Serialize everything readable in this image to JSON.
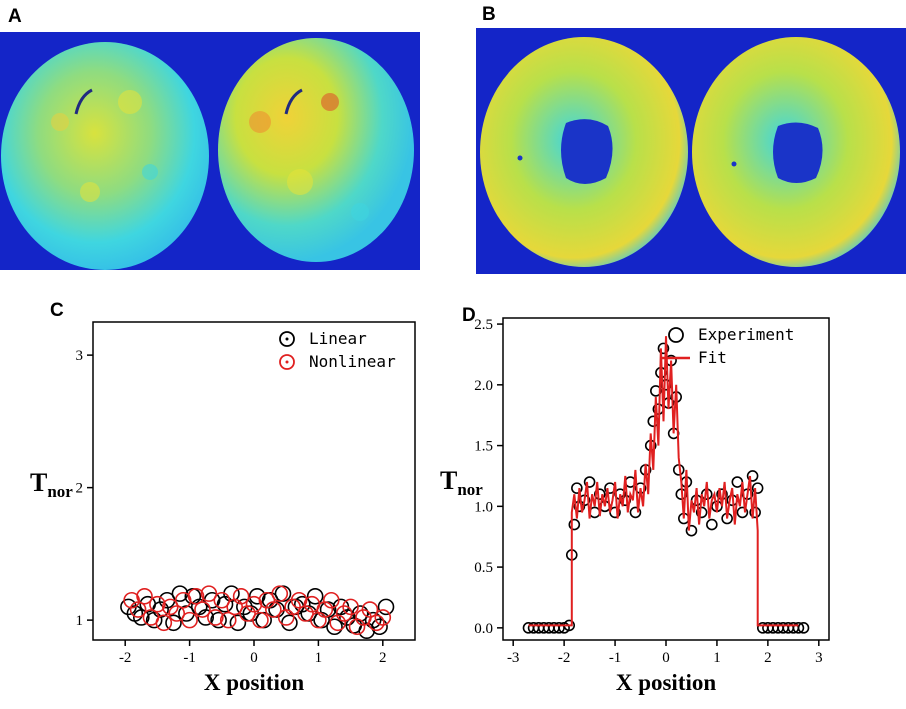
{
  "panels": {
    "a": {
      "label": "A"
    },
    "b": {
      "label": "B"
    },
    "c": {
      "label": "C"
    },
    "d": {
      "label": "D"
    }
  },
  "colors": {
    "background_blue": "#1425c8",
    "cyan": "#3fd6e0",
    "yellow": "#e6e33a",
    "red": "#e02020",
    "black": "#000000"
  },
  "chart_data": [
    {
      "panel": "C",
      "type": "scatter",
      "xlabel": "X position",
      "ylabel_main": "T",
      "ylabel_sub": "nor",
      "xlim": [
        -2.5,
        2.5
      ],
      "ylim": [
        0.85,
        3.25
      ],
      "xticks": [
        -2,
        -1,
        0,
        1,
        2
      ],
      "xtick_labels": [
        "-2",
        "-1",
        "0",
        "1",
        "2"
      ],
      "yticks": [
        1,
        2,
        3
      ],
      "ytick_labels": [
        "1",
        "2",
        "3"
      ],
      "legend": {
        "placement": "top-right",
        "entries": [
          "Linear",
          "Nonlinear"
        ]
      },
      "series": [
        {
          "name": "Linear",
          "color": "#000000",
          "x": [
            -1.95,
            -1.85,
            -1.75,
            -1.65,
            -1.55,
            -1.45,
            -1.35,
            -1.25,
            -1.15,
            -1.05,
            -0.95,
            -0.85,
            -0.75,
            -0.65,
            -0.55,
            -0.45,
            -0.35,
            -0.25,
            -0.15,
            -0.05,
            0.05,
            0.15,
            0.25,
            0.35,
            0.45,
            0.55,
            0.65,
            0.75,
            0.85,
            0.95,
            1.05,
            1.15,
            1.25,
            1.35,
            1.45,
            1.55,
            1.65,
            1.75,
            1.85,
            1.95,
            2.05
          ],
          "y": [
            1.1,
            1.05,
            1.02,
            1.12,
            1.0,
            1.08,
            1.15,
            0.98,
            1.2,
            1.05,
            1.18,
            1.1,
            1.02,
            1.15,
            1.0,
            1.12,
            1.2,
            0.98,
            1.1,
            1.05,
            1.18,
            1.0,
            1.15,
            1.08,
            1.2,
            0.98,
            1.1,
            1.12,
            1.05,
            1.18,
            1.0,
            1.08,
            0.95,
            1.1,
            1.02,
            0.96,
            1.05,
            0.92,
            1.0,
            0.95,
            1.1
          ]
        },
        {
          "name": "Nonlinear",
          "color": "#e02020",
          "x": [
            -1.9,
            -1.8,
            -1.7,
            -1.6,
            -1.5,
            -1.4,
            -1.3,
            -1.2,
            -1.1,
            -1.0,
            -0.9,
            -0.8,
            -0.7,
            -0.6,
            -0.5,
            -0.4,
            -0.3,
            -0.2,
            -0.1,
            0.0,
            0.1,
            0.2,
            0.3,
            0.4,
            0.5,
            0.6,
            0.7,
            0.8,
            0.9,
            1.0,
            1.1,
            1.2,
            1.3,
            1.4,
            1.5,
            1.6,
            1.7,
            1.8,
            1.9,
            2.0
          ],
          "y": [
            1.15,
            1.08,
            1.18,
            1.02,
            1.12,
            0.98,
            1.1,
            1.05,
            1.15,
            1.0,
            1.18,
            1.08,
            1.2,
            1.02,
            1.15,
            1.0,
            1.1,
            1.18,
            1.05,
            1.12,
            1.0,
            1.15,
            1.08,
            1.2,
            1.02,
            1.1,
            1.15,
            1.05,
            1.12,
            1.0,
            1.08,
            1.15,
            0.98,
            1.05,
            1.1,
            0.95,
            1.02,
            1.08,
            0.98,
            1.02
          ]
        }
      ]
    },
    {
      "panel": "D",
      "type": "scatter",
      "xlabel": "X position",
      "ylabel_main": "T",
      "ylabel_sub": "nor",
      "xlim": [
        -3.2,
        3.2
      ],
      "ylim": [
        -0.1,
        2.55
      ],
      "xticks": [
        -3,
        -2,
        -1,
        0,
        1,
        2,
        3
      ],
      "xtick_labels": [
        "-3",
        "-2",
        "-1",
        "0",
        "1",
        "2",
        "3"
      ],
      "yticks": [
        0.0,
        0.5,
        1.0,
        1.5,
        2.0,
        2.5
      ],
      "ytick_labels": [
        "0.0",
        "0.5",
        "1.0",
        "1.5",
        "2.0",
        "2.5"
      ],
      "legend": {
        "placement": "top-right",
        "entries": [
          "Experiment",
          "Fit"
        ]
      },
      "series": [
        {
          "name": "Experiment",
          "color": "#000000",
          "style": "open-circle",
          "x": [
            -2.7,
            -2.6,
            -2.5,
            -2.4,
            -2.3,
            -2.2,
            -2.1,
            -2.0,
            -1.9,
            -1.85,
            -1.8,
            -1.75,
            -1.7,
            -1.6,
            -1.5,
            -1.4,
            -1.3,
            -1.2,
            -1.1,
            -1.0,
            -0.9,
            -0.8,
            -0.7,
            -0.6,
            -0.5,
            -0.4,
            -0.3,
            -0.25,
            -0.2,
            -0.15,
            -0.1,
            -0.05,
            0.0,
            0.05,
            0.1,
            0.15,
            0.2,
            0.25,
            0.3,
            0.35,
            0.4,
            0.5,
            0.6,
            0.7,
            0.8,
            0.9,
            1.0,
            1.1,
            1.2,
            1.3,
            1.4,
            1.5,
            1.6,
            1.7,
            1.75,
            1.8,
            1.9,
            2.0,
            2.1,
            2.2,
            2.3,
            2.4,
            2.5,
            2.6,
            2.7
          ],
          "y": [
            0.0,
            0.0,
            0.0,
            0.0,
            0.0,
            0.0,
            0.0,
            0.0,
            0.02,
            0.6,
            0.85,
            1.15,
            1.0,
            1.05,
            1.2,
            0.95,
            1.1,
            1.0,
            1.15,
            0.95,
            1.1,
            1.05,
            1.2,
            0.95,
            1.15,
            1.3,
            1.5,
            1.7,
            1.95,
            1.8,
            2.1,
            2.3,
            2.0,
            1.85,
            2.2,
            1.6,
            1.9,
            1.3,
            1.1,
            0.9,
            1.2,
            0.8,
            1.05,
            0.95,
            1.1,
            0.85,
            1.0,
            1.1,
            0.9,
            1.05,
            1.2,
            0.95,
            1.1,
            1.25,
            0.95,
            1.15,
            0.0,
            0.0,
            0.0,
            0.0,
            0.0,
            0.0,
            0.0,
            0.0,
            0.0
          ]
        },
        {
          "name": "Fit",
          "color": "#e02020",
          "style": "line",
          "x": [
            -2.7,
            -2.0,
            -1.85,
            -1.85,
            -1.8,
            -1.75,
            -1.7,
            -1.65,
            -1.6,
            -1.55,
            -1.5,
            -1.45,
            -1.4,
            -1.35,
            -1.3,
            -1.25,
            -1.2,
            -1.15,
            -1.1,
            -1.05,
            -1.0,
            -0.95,
            -0.9,
            -0.85,
            -0.8,
            -0.75,
            -0.7,
            -0.65,
            -0.6,
            -0.55,
            -0.5,
            -0.45,
            -0.4,
            -0.35,
            -0.3,
            -0.25,
            -0.2,
            -0.15,
            -0.1,
            -0.05,
            0.0,
            0.05,
            0.1,
            0.15,
            0.2,
            0.25,
            0.3,
            0.35,
            0.4,
            0.45,
            0.5,
            0.55,
            0.6,
            0.65,
            0.7,
            0.75,
            0.8,
            0.85,
            0.9,
            0.95,
            1.0,
            1.05,
            1.1,
            1.15,
            1.2,
            1.25,
            1.3,
            1.35,
            1.4,
            1.45,
            1.5,
            1.55,
            1.6,
            1.65,
            1.7,
            1.75,
            1.8,
            1.8,
            1.85,
            2.6
          ],
          "y": [
            0.02,
            0.02,
            0.02,
            0.95,
            1.1,
            0.9,
            1.15,
            0.95,
            1.05,
            1.2,
            0.9,
            1.1,
            1.0,
            1.2,
            0.92,
            1.1,
            1.0,
            1.15,
            0.95,
            1.05,
            1.2,
            0.9,
            1.1,
            1.0,
            1.25,
            0.95,
            1.1,
            1.05,
            1.3,
            0.95,
            1.15,
            1.0,
            1.35,
            1.1,
            1.6,
            1.3,
            1.9,
            1.5,
            2.3,
            1.7,
            2.4,
            1.8,
            2.2,
            1.6,
            2.0,
            1.4,
            1.2,
            0.9,
            1.3,
            0.8,
            1.05,
            0.95,
            1.15,
            0.85,
            1.1,
            1.0,
            1.2,
            0.9,
            1.05,
            1.1,
            0.95,
            1.15,
            1.0,
            1.2,
            0.9,
            1.05,
            1.15,
            0.85,
            1.1,
            1.0,
            1.2,
            0.95,
            1.1,
            1.25,
            0.9,
            1.15,
            0.8,
            0.02,
            0.02,
            0.02
          ]
        }
      ]
    }
  ]
}
